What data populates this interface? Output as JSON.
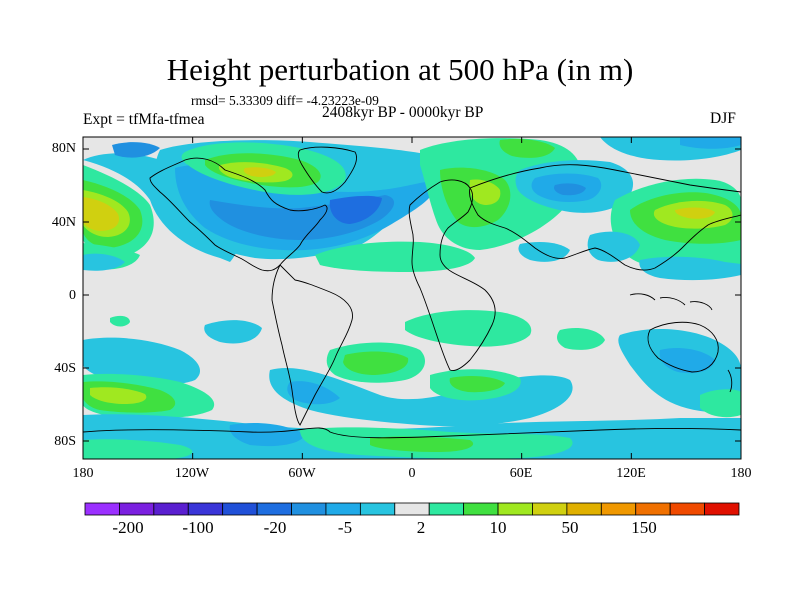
{
  "title": "Height perturbation at 500 hPa (in m)",
  "stats": "rmsd= 5.33309 diff= -4.23223e-09",
  "expt": "Expt = tfMfa-tfmea",
  "period": "2408kyr BP - 0000kyr BP",
  "season": "DJF",
  "map": {
    "y_ticks": [
      "80N",
      "40N",
      "0",
      "40S",
      "80S"
    ],
    "x_ticks": [
      "180",
      "120W",
      "60W",
      "0",
      "60E",
      "120E",
      "180"
    ],
    "background_color": "#e6e6e6"
  },
  "colorbar": {
    "colors": [
      "#9b30ff",
      "#7b20e0",
      "#5a1fd0",
      "#3a35d8",
      "#2050d8",
      "#1e6ee0",
      "#2090e0",
      "#20aae8",
      "#28c4e0",
      "#e6e6e6",
      "#2ee8a0",
      "#40e040",
      "#a0e820",
      "#d0d010",
      "#e0b000",
      "#f09800",
      "#f07000",
      "#f04a00",
      "#e01000"
    ],
    "labels": [
      "-200",
      "-100",
      "-20",
      "-5",
      "2",
      "10",
      "50",
      "150"
    ]
  }
}
